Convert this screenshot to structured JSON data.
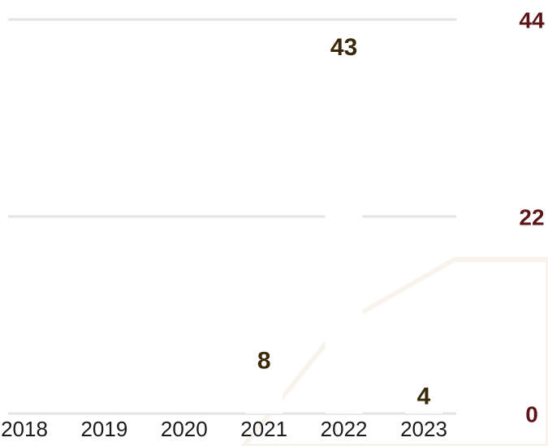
{
  "chart_data": {
    "type": "bar",
    "categories": [
      "2018",
      "2019",
      "2020",
      "2021",
      "2022",
      "2023"
    ],
    "values": [
      null,
      null,
      null,
      8,
      43,
      4
    ],
    "color": "#ffffff",
    "ylim": [
      0,
      44
    ],
    "yticks": [
      0,
      22,
      44
    ],
    "grid": true,
    "y_axis_side": "right"
  }
}
